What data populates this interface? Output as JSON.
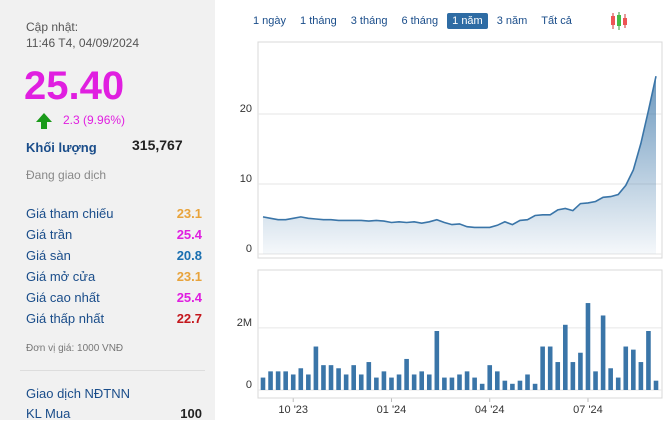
{
  "header": {
    "updated_label": "Cập nhật:",
    "updated_time": "11:46 T4, 04/09/2024"
  },
  "price": {
    "value": "25.40",
    "change": "2.3 (9.96%)",
    "color": "#e01fe0",
    "arrow_color": "#1a9a1a"
  },
  "volume": {
    "label": "Khối lượng",
    "value": "315,767"
  },
  "status": "Đang giao dịch",
  "stats": [
    {
      "label": "Giá tham chiếu",
      "value": "23.1",
      "color": "#e8a33b"
    },
    {
      "label": "Giá trần",
      "value": "25.4",
      "color": "#e01fe0"
    },
    {
      "label": "Giá sàn",
      "value": "20.8",
      "color": "#1a6fb0"
    },
    {
      "label": "Giá mở cửa",
      "value": "23.1",
      "color": "#e8a33b"
    },
    {
      "label": "Giá cao nhất",
      "value": "25.4",
      "color": "#e01fe0"
    },
    {
      "label": "Giá thấp nhất",
      "value": "22.7",
      "color": "#c4161c"
    }
  ],
  "unit_note": "Đơn vị giá: 1000 VNĐ",
  "foreign": {
    "title": "Giao dịch NĐTNN",
    "rows": [
      {
        "label": "KL Mua",
        "value": "100"
      }
    ]
  },
  "ranges": [
    "1 ngày",
    "1 tháng",
    "3 tháng",
    "6 tháng",
    "1 năm",
    "3 năm",
    "Tất cả"
  ],
  "active_range": 4,
  "chart_data": [
    {
      "type": "area",
      "color": "#3a75a8",
      "grid": true,
      "categories": [
        null,
        null,
        null,
        null,
        "10 '23",
        null,
        null,
        null,
        null,
        null,
        null,
        null,
        null,
        null,
        null,
        null,
        null,
        "01 '24",
        null,
        null,
        null,
        null,
        null,
        null,
        null,
        null,
        null,
        null,
        null,
        null,
        "04 '24",
        null,
        null,
        null,
        null,
        null,
        null,
        null,
        null,
        null,
        null,
        null,
        null,
        "07 '24",
        null,
        null,
        null,
        null,
        null,
        null,
        null,
        null,
        null
      ],
      "values": [
        5.3,
        5.1,
        4.9,
        4.9,
        5.1,
        5.3,
        5.1,
        5.0,
        4.9,
        4.9,
        4.8,
        4.8,
        4.8,
        4.8,
        4.7,
        4.8,
        4.7,
        4.5,
        4.6,
        4.5,
        4.6,
        4.4,
        4.6,
        4.9,
        4.5,
        4.2,
        4.3,
        3.9,
        3.8,
        3.8,
        3.8,
        4.1,
        4.6,
        4.2,
        4.8,
        4.9,
        5.5,
        5.6,
        5.6,
        6.3,
        6.5,
        6.2,
        7.2,
        7.3,
        7.5,
        8.1,
        8.2,
        8.5,
        9.8,
        12.0,
        15.8,
        20.5,
        25.4
      ],
      "ylim": [
        0,
        30
      ],
      "yticks": [
        0,
        10,
        20
      ]
    },
    {
      "type": "bar",
      "color": "#3a75a8",
      "grid": true,
      "values": [
        400000,
        600000,
        600000,
        600000,
        500000,
        700000,
        500000,
        1400000,
        800000,
        800000,
        700000,
        500000,
        800000,
        500000,
        900000,
        400000,
        600000,
        400000,
        500000,
        1000000,
        500000,
        600000,
        500000,
        1900000,
        400000,
        400000,
        500000,
        600000,
        400000,
        200000,
        800000,
        600000,
        300000,
        200000,
        300000,
        500000,
        200000,
        1400000,
        1400000,
        900000,
        2100000,
        900000,
        1200000,
        2800000,
        600000,
        2400000,
        700000,
        400000,
        1400000,
        1300000,
        900000,
        1900000,
        300000
      ],
      "ylim": [
        0,
        3800000
      ],
      "yticks": [
        0,
        {
          "value": 2000000,
          "label": "2M"
        }
      ]
    }
  ]
}
